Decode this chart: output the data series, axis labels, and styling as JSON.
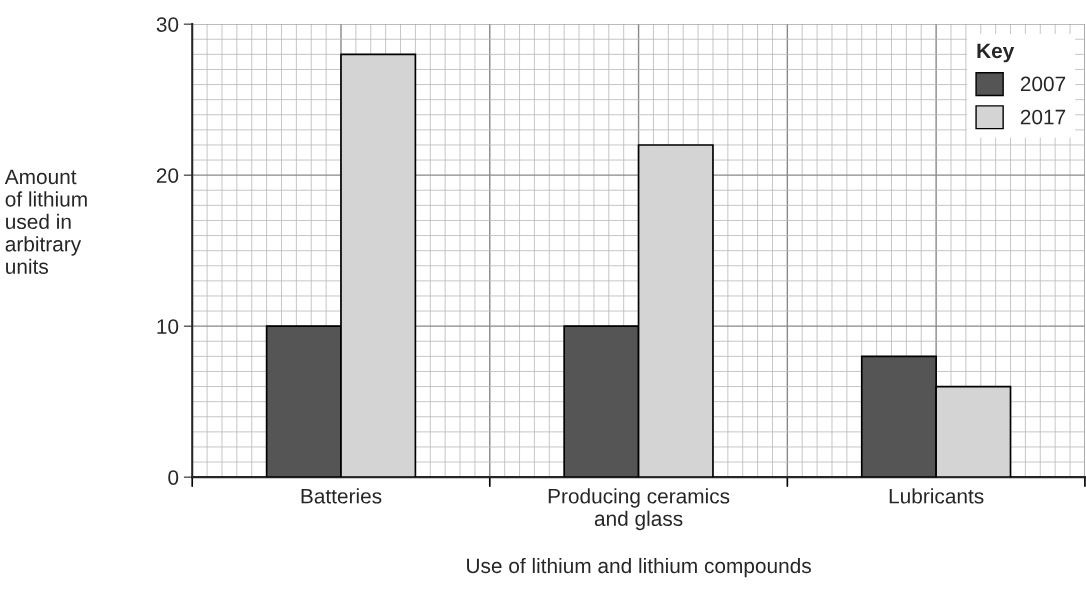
{
  "chart_data": {
    "type": "bar",
    "xlabel": "Use of lithium and lithium compounds",
    "ylabel": "Amount\nof lithium\nused in\narbitrary\nunits",
    "legend_title": "Key",
    "categories": [
      "Batteries",
      "Producing ceramics\nand glass",
      "Lubricants"
    ],
    "series": [
      {
        "name": "2007",
        "color": "#555555",
        "values": [
          10,
          10,
          8
        ]
      },
      {
        "name": "2017",
        "color": "#d4d4d4",
        "values": [
          28,
          22,
          6
        ]
      }
    ],
    "ylim": [
      0,
      30
    ],
    "yticks": [
      0,
      10,
      20,
      30
    ],
    "grid": true,
    "legend": "top right"
  }
}
